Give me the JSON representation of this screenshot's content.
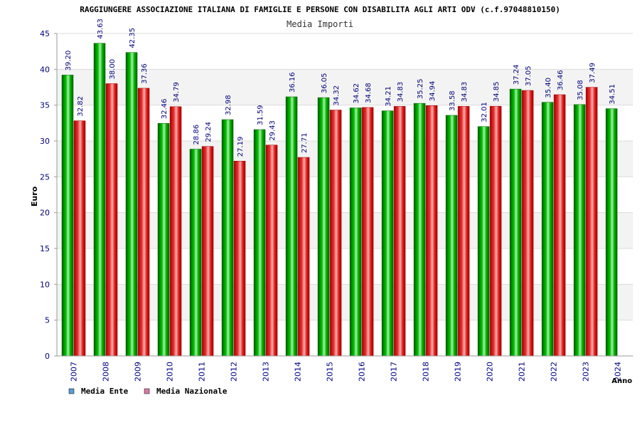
{
  "chart_data": {
    "type": "bar",
    "title": "RAGGIUNGERE ASSOCIAZIONE ITALIANA DI FAMIGLIE E PERSONE CON DISABILITA AGLI ARTI ODV (c.f.97048810150)",
    "subtitle": "Media Importi",
    "ylabel": "Euro",
    "xlabel": "Anno",
    "ylim": [
      0,
      45
    ],
    "yticks": [
      0,
      5,
      10,
      15,
      20,
      25,
      30,
      35,
      40,
      45
    ],
    "grid": true,
    "legend_position": "bottom-left",
    "categories": [
      "2007",
      "2008",
      "2009",
      "2010",
      "2011",
      "2012",
      "2013",
      "2014",
      "2015",
      "2016",
      "2017",
      "2018",
      "2019",
      "2020",
      "2021",
      "2022",
      "2023",
      "2024"
    ],
    "series": [
      {
        "name": "Media Ente",
        "color": "#00aa00",
        "values": [
          39.2,
          43.63,
          42.35,
          32.46,
          28.86,
          32.98,
          31.59,
          36.16,
          36.05,
          34.62,
          34.21,
          35.25,
          33.58,
          32.01,
          37.24,
          35.4,
          35.08,
          34.51
        ],
        "labels": [
          "39.20",
          "43.63",
          "42.35",
          "32.46",
          "28.86",
          "32.98",
          "31.59",
          "36.16",
          "36.05",
          "34.62",
          "34.21",
          "35.25",
          "33.58",
          "32.01",
          "37.24",
          "35.40",
          "35.08",
          "34.51"
        ]
      },
      {
        "name": "Media Nazionale",
        "color": "#e82020",
        "values": [
          32.82,
          38.0,
          37.36,
          34.79,
          29.24,
          27.19,
          29.43,
          27.71,
          34.32,
          34.68,
          34.83,
          34.94,
          34.83,
          34.85,
          37.05,
          36.46,
          37.49,
          null
        ],
        "labels": [
          "32.82",
          "38.00",
          "37.36",
          "34.79",
          "29.24",
          "27.19",
          "29.43",
          "27.71",
          "34.32",
          "34.68",
          "34.83",
          "34.94",
          "34.83",
          "34.85",
          "37.05",
          "36.46",
          "37.49",
          ""
        ]
      }
    ],
    "legend": [
      {
        "label": "Media Ente",
        "color": "#5b9bd5"
      },
      {
        "label": "Media Nazionale",
        "color": "#d87aa8"
      }
    ]
  }
}
